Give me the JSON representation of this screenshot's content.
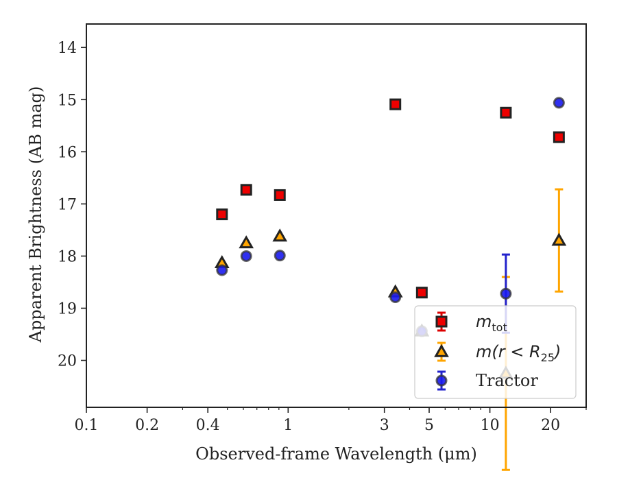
{
  "chart_data": {
    "type": "scatter",
    "xlabel": "Observed-frame Wavelength (μm)",
    "ylabel": "Apparent Brightness (AB mag)",
    "xscale": "log",
    "xlim": [
      0.1,
      30
    ],
    "ylim": [
      20.9,
      13.55
    ],
    "y_inverted": true,
    "xticks": [
      0.1,
      0.2,
      0.4,
      1,
      3,
      5,
      10,
      20
    ],
    "xtick_labels": [
      "0.1",
      "0.2",
      "0.4",
      "1",
      "3",
      "5",
      "10",
      "20"
    ],
    "yticks": [
      14,
      15,
      16,
      17,
      18,
      19,
      20
    ],
    "ytick_labels": [
      "14",
      "15",
      "16",
      "17",
      "18",
      "19",
      "20"
    ],
    "grid": false,
    "legend_position": "bottom-right",
    "series": [
      {
        "name": "m_tot",
        "legend_main": "m",
        "legend_sub": "tot",
        "legend_tail": "",
        "marker": "square",
        "fill": "#ee0000",
        "edge": "#222222",
        "errcolor": "#dd0000",
        "points": [
          {
            "x": 0.47,
            "y": 17.2,
            "err": 0.05
          },
          {
            "x": 0.62,
            "y": 16.73,
            "err": 0.05
          },
          {
            "x": 0.91,
            "y": 16.83,
            "err": 0.05
          },
          {
            "x": 3.4,
            "y": 15.09,
            "err": 0.05
          },
          {
            "x": 4.6,
            "y": 18.7,
            "err": 0.05
          },
          {
            "x": 12.0,
            "y": 15.25,
            "err": 0.05
          },
          {
            "x": 22.0,
            "y": 15.72,
            "err": 0.05
          }
        ]
      },
      {
        "name": "m(r < R25)",
        "legend_main": "m(r < R",
        "legend_sub": "25",
        "legend_tail": ")",
        "marker": "triangle",
        "fill": "#ffa500",
        "edge": "#222222",
        "errcolor": "#ffa500",
        "points": [
          {
            "x": 0.47,
            "y": 18.13,
            "err": 0.05
          },
          {
            "x": 0.62,
            "y": 17.75,
            "err": 0.05
          },
          {
            "x": 0.91,
            "y": 17.62,
            "err": 0.05
          },
          {
            "x": 3.4,
            "y": 18.69,
            "err": 0.05
          },
          {
            "x": 4.6,
            "y": 19.44,
            "err": 0.05
          },
          {
            "x": 12.0,
            "y": 20.25,
            "err": 1.85
          },
          {
            "x": 22.0,
            "y": 17.7,
            "err": 0.98
          }
        ]
      },
      {
        "name": "Tractor",
        "legend_main": "Tractor",
        "legend_sub": "",
        "legend_tail": "",
        "marker": "circle",
        "fill": "#1a1aee",
        "edge": "#333333",
        "errcolor": "#2222cc",
        "points": [
          {
            "x": 0.47,
            "y": 18.27,
            "err": 0.07
          },
          {
            "x": 0.62,
            "y": 18.0,
            "err": 0.07
          },
          {
            "x": 0.91,
            "y": 17.99,
            "err": 0.08
          },
          {
            "x": 3.4,
            "y": 18.79,
            "err": 0.05
          },
          {
            "x": 4.6,
            "y": 19.44,
            "err": 0.05
          },
          {
            "x": 12.0,
            "y": 18.72,
            "err": 0.75
          },
          {
            "x": 22.0,
            "y": 15.06,
            "err": 0.1
          }
        ]
      }
    ]
  }
}
